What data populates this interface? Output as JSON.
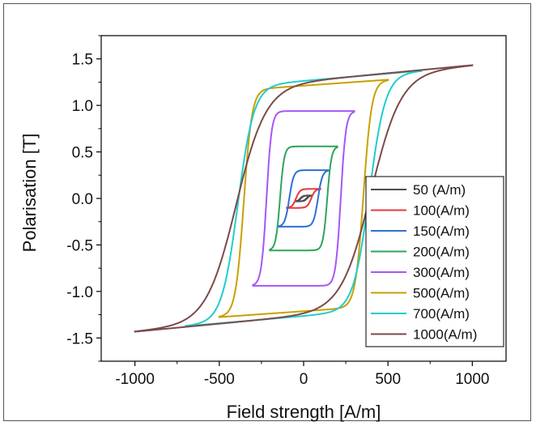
{
  "chart_data": {
    "type": "line",
    "title": "",
    "xlabel": "Field strength [A/m]",
    "ylabel": "Polarisation [T]",
    "xlim": [
      -1200,
      1200
    ],
    "ylim": [
      -1.75,
      1.75
    ],
    "xticks": [
      -1000,
      -500,
      0,
      500,
      1000
    ],
    "xtick_labels": [
      "-1000",
      "-500",
      "0",
      "500",
      "1000"
    ],
    "yticks": [
      -1.5,
      -1.0,
      -0.5,
      0.0,
      0.5,
      1.0,
      1.5
    ],
    "ytick_labels": [
      "-1.5",
      "-1.0",
      "-0.5",
      "0.0",
      "0.5",
      "1.0",
      "1.5"
    ],
    "grid": false,
    "legend_position": "bottom-right",
    "series": [
      {
        "name": "50 (A/m)",
        "color": "#4d4d4d",
        "Hmax": 50,
        "Jmax": 0.03,
        "Hc": 18,
        "k": 0
      },
      {
        "name": "100(A/m)",
        "color": "#e8393b",
        "Hmax": 100,
        "Jmax": 0.1,
        "Hc": 45,
        "k": 0
      },
      {
        "name": "150(A/m)",
        "color": "#2d6fd6",
        "Hmax": 150,
        "Jmax": 0.3,
        "Hc": 85,
        "k": 0
      },
      {
        "name": "200(A/m)",
        "color": "#2ea35a",
        "Hmax": 200,
        "Jmax": 0.55,
        "Hc": 140,
        "k": 0
      },
      {
        "name": "300(A/m)",
        "color": "#a855f7",
        "Hmax": 300,
        "Jmax": 0.93,
        "Hc": 220,
        "k": 0
      },
      {
        "name": "500(A/m)",
        "color": "#c9a000",
        "Hmax": 500,
        "Jmax": 1.27,
        "Hc": 355,
        "k": 0.05
      },
      {
        "name": "700(A/m)",
        "color": "#22cccc",
        "Hmax": 700,
        "Jmax": 1.37,
        "Hc": 390,
        "k": 0.08
      },
      {
        "name": "1000(A/m)",
        "color": "#7a4a4a",
        "Hmax": 1000,
        "Jmax": 1.43,
        "Hc": 400,
        "k": 0.12
      }
    ]
  }
}
